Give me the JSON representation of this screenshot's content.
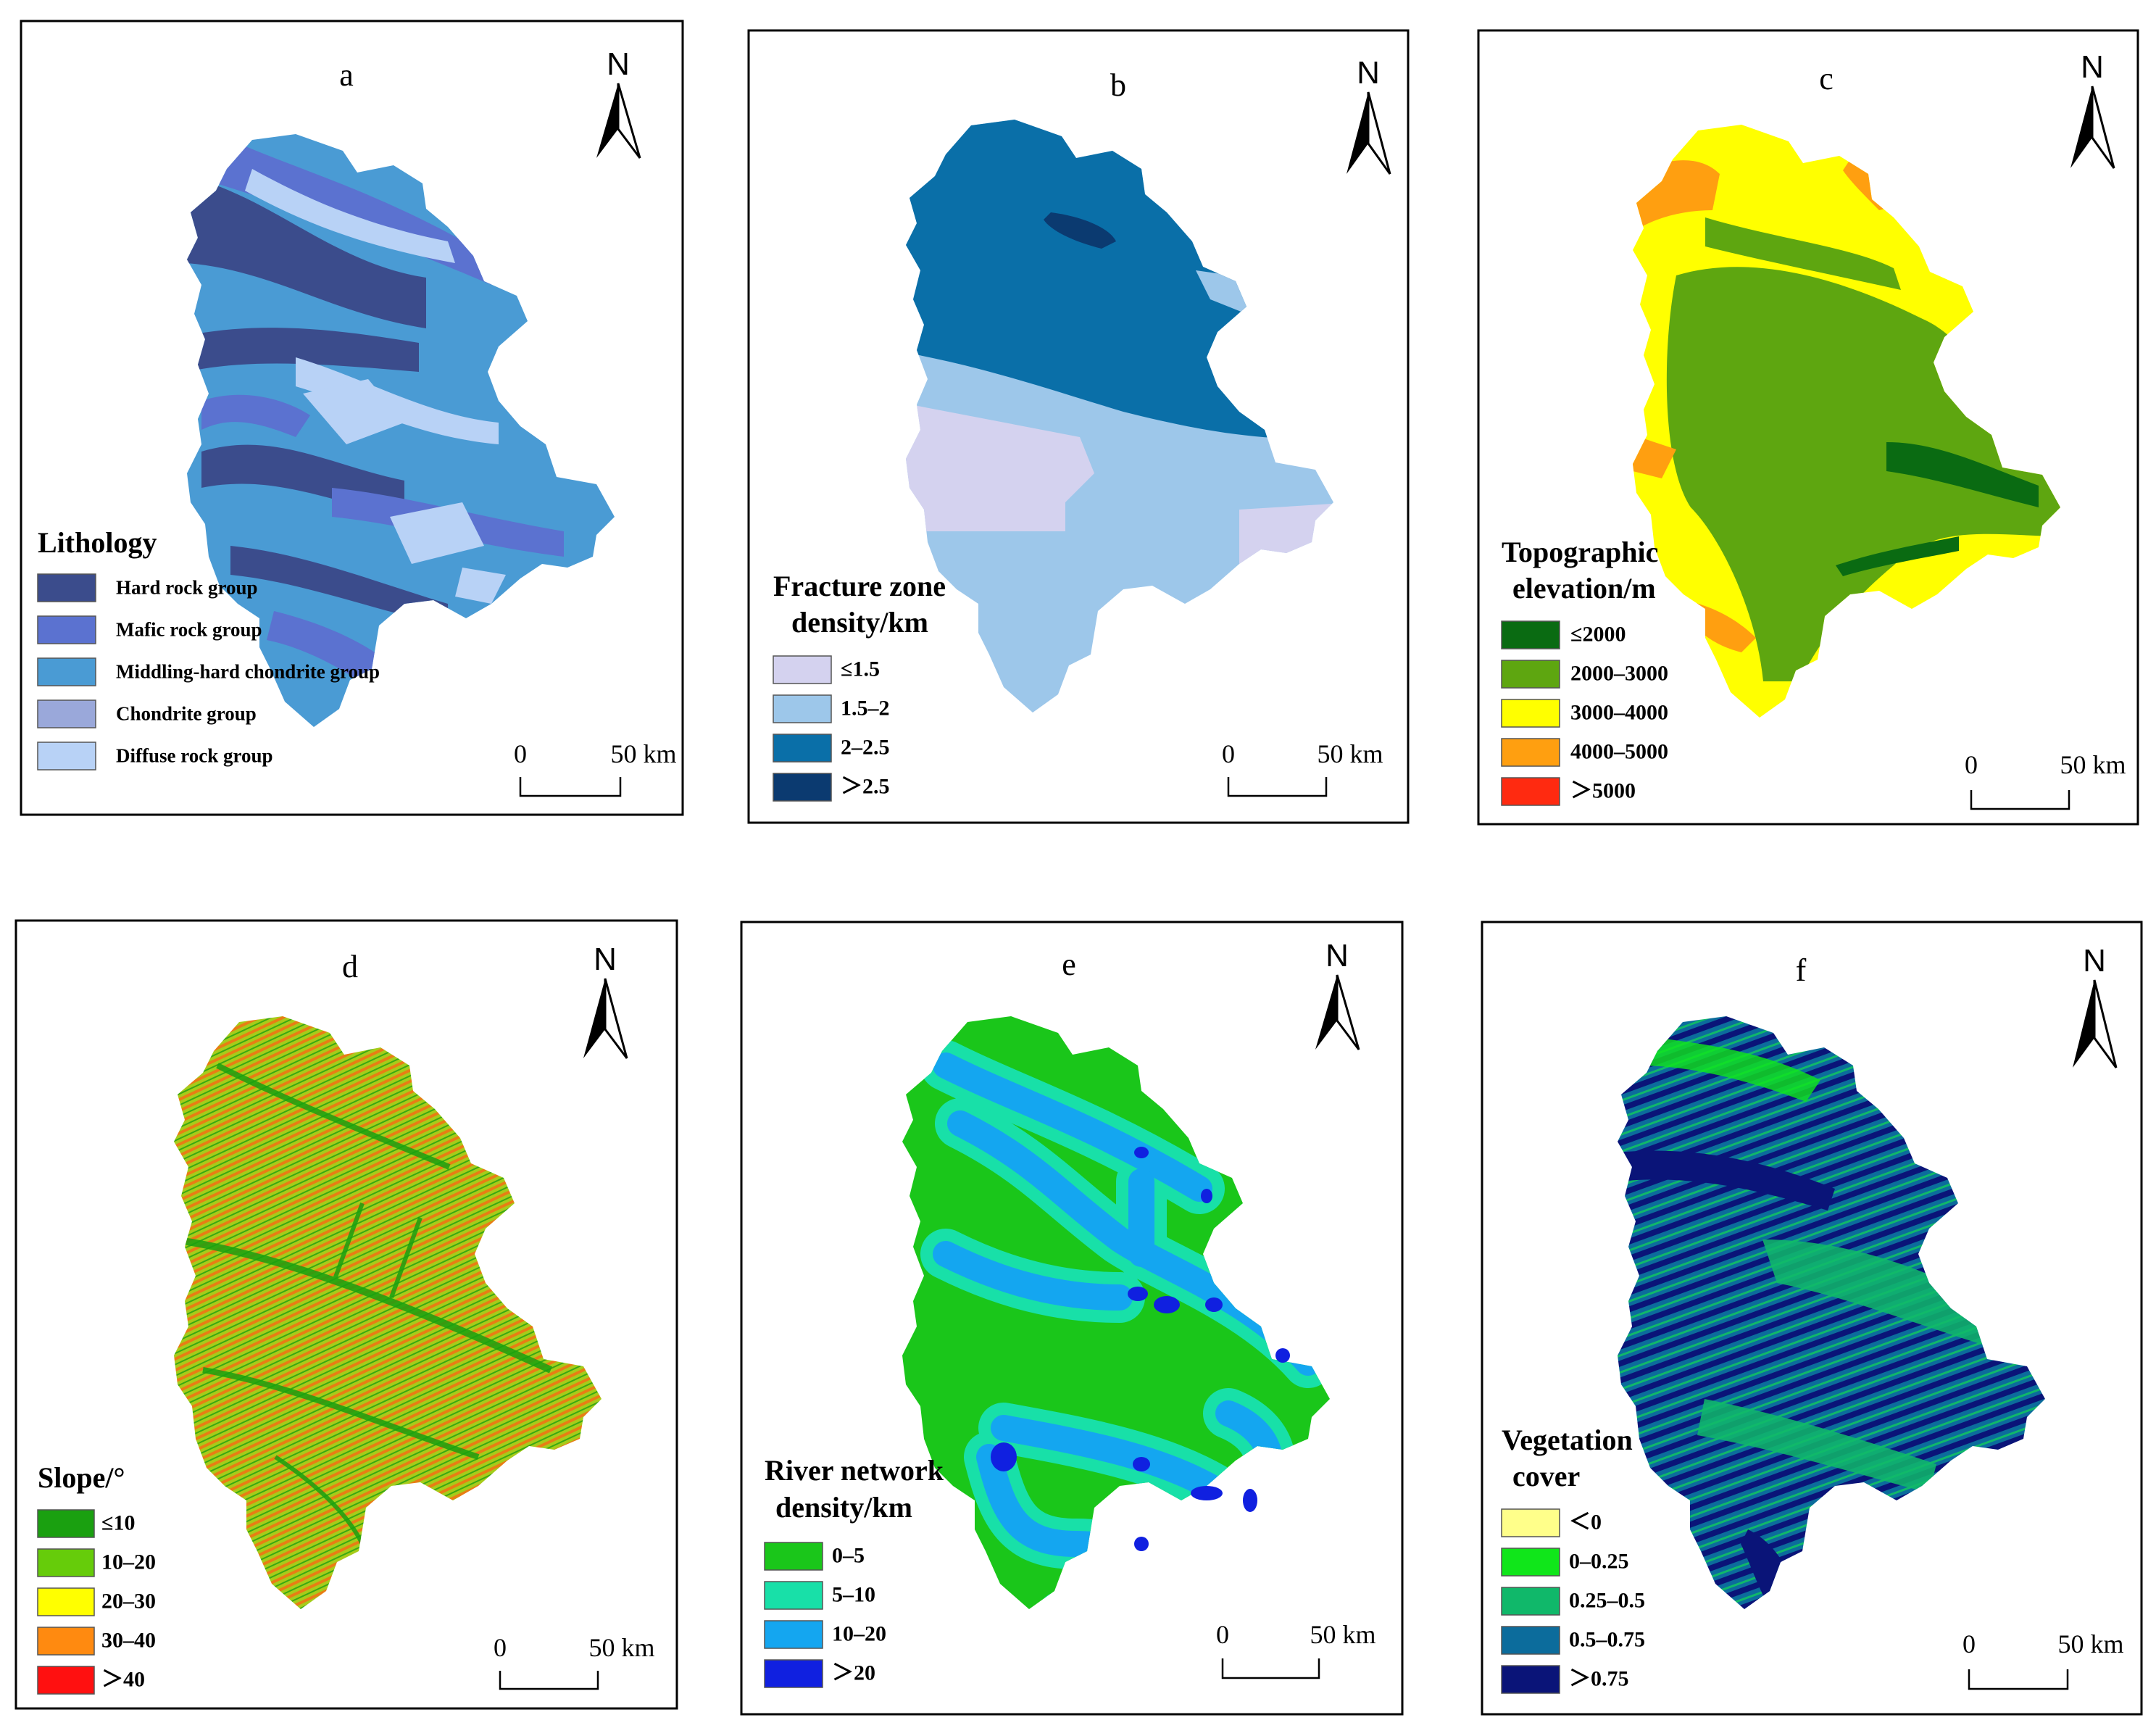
{
  "north_label": "N",
  "scale_bar": {
    "start": "0",
    "end": "50 km"
  },
  "panels": {
    "a": {
      "letter": "a",
      "legend_title": "Lithology",
      "legend": [
        {
          "label": "Hard rock group",
          "color": "#3b4c8c"
        },
        {
          "label": "Mafic rock group",
          "color": "#5b72d0"
        },
        {
          "label": "Middling-hard chondrite group",
          "color": "#4a9bd4"
        },
        {
          "label": "Chondrite group",
          "color": "#9aa8da"
        },
        {
          "label": "Diffuse rock group",
          "color": "#b8d2f6"
        }
      ]
    },
    "b": {
      "letter": "b",
      "legend_title_1": "Fracture zone",
      "legend_title_2": "density/km",
      "legend": [
        {
          "label": "≤1.5",
          "color": "#d4d2ef"
        },
        {
          "label": "1.5–2",
          "color": "#9dc7ea"
        },
        {
          "label": "2–2.5",
          "color": "#0a6fa8"
        },
        {
          "label": "＞2.5",
          "color": "#0b3a70"
        }
      ]
    },
    "c": {
      "letter": "c",
      "legend_title_1": "Topographic",
      "legend_title_2": "elevation/m",
      "legend": [
        {
          "label": "≤2000",
          "color": "#0a6b12"
        },
        {
          "label": "2000–3000",
          "color": "#5ea610"
        },
        {
          "label": "3000–4000",
          "color": "#ffff00"
        },
        {
          "label": "4000–5000",
          "color": "#ff9f10"
        },
        {
          "label": "＞5000",
          "color": "#ff2a10"
        }
      ]
    },
    "d": {
      "letter": "d",
      "legend_title": "Slope/°",
      "legend": [
        {
          "label": "≤10",
          "color": "#1aa010"
        },
        {
          "label": "10–20",
          "color": "#66cc0a"
        },
        {
          "label": "20–30",
          "color": "#ffff00"
        },
        {
          "label": "30–40",
          "color": "#ff8a10"
        },
        {
          "label": "＞40",
          "color": "#ff1010"
        }
      ]
    },
    "e": {
      "letter": "e",
      "legend_title_1": "River network",
      "legend_title_2": "density/km",
      "legend": [
        {
          "label": "0–5",
          "color": "#1ac61a"
        },
        {
          "label": "5–10",
          "color": "#18e0a8"
        },
        {
          "label": "10–20",
          "color": "#14a6f0"
        },
        {
          "label": "＞20",
          "color": "#1020e0"
        }
      ]
    },
    "f": {
      "letter": "f",
      "legend_title_1": "Vegetation",
      "legend_title_2": "cover",
      "legend": [
        {
          "label": "＜0",
          "color": "#ffff8a"
        },
        {
          "label": "0–0.25",
          "color": "#10e61a"
        },
        {
          "label": "0.25–0.5",
          "color": "#10b86a"
        },
        {
          "label": "0.5–0.75",
          "color": "#0c6c9c"
        },
        {
          "label": "＞0.75",
          "color": "#0a1478"
        }
      ]
    }
  }
}
